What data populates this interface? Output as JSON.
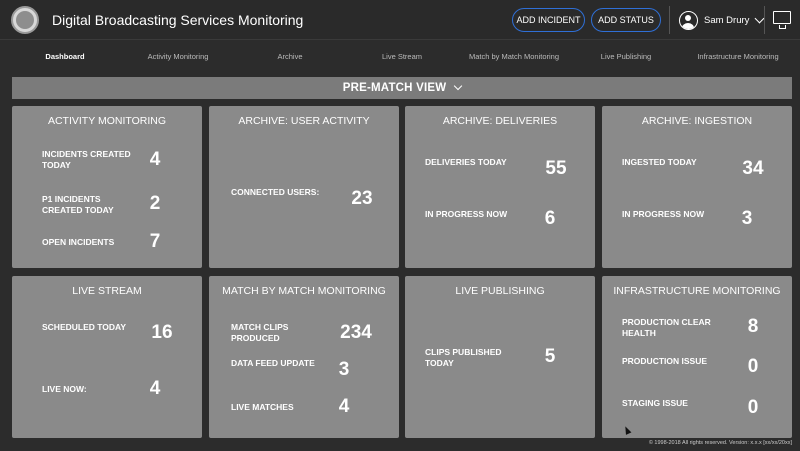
{
  "header": {
    "title": "Digital Broadcasting Services Monitoring",
    "add_incident_label": "ADD INCIDENT",
    "add_status_label": "ADD STATUS",
    "user_name": "Sam Drury",
    "accent_color": "#2f6fd6",
    "logo_icon": "uefa-logo",
    "monitor_icon": "monitor-icon"
  },
  "nav": {
    "items": [
      {
        "label": "Dashboard",
        "active": true
      },
      {
        "label": "Activity Monitoring"
      },
      {
        "label": "Archive"
      },
      {
        "label": "Live Stream"
      },
      {
        "label": "Match by Match Monitoring"
      },
      {
        "label": "Live Publishing"
      },
      {
        "label": "Infrastructure Monitoring"
      }
    ]
  },
  "view": {
    "label": "PRE-MATCH VIEW"
  },
  "cards": [
    {
      "title": "ACTIVITY MONITORING",
      "metrics": [
        {
          "label": "INCIDENTS CREATED TODAY",
          "value": "4"
        },
        {
          "label": "P1 INCIDENTS CREATED TODAY",
          "value": "2"
        },
        {
          "label": "OPEN INCIDENTS",
          "value": "7"
        }
      ]
    },
    {
      "title": "ARCHIVE: USER ACTIVITY",
      "metrics": [
        {
          "label": "CONNECTED USERS:",
          "value": "23"
        }
      ]
    },
    {
      "title": "ARCHIVE: DELIVERIES",
      "metrics": [
        {
          "label": "DELIVERIES TODAY",
          "value": "55"
        },
        {
          "label": "IN PROGRESS NOW",
          "value": "6"
        }
      ]
    },
    {
      "title": "ARCHIVE: INGESTION",
      "metrics": [
        {
          "label": "INGESTED TODAY",
          "value": "34"
        },
        {
          "label": "IN PROGRESS NOW",
          "value": "3"
        }
      ]
    },
    {
      "title": "LIVE STREAM",
      "metrics": [
        {
          "label": "SCHEDULED TODAY",
          "value": "16"
        },
        {
          "label": "LIVE NOW:",
          "value": "4"
        }
      ]
    },
    {
      "title": "MATCH BY MATCH MONITORING",
      "metrics": [
        {
          "label": "MATCH CLIPS PRODUCED",
          "value": "234"
        },
        {
          "label": "DATA FEED UPDATE",
          "value": "3"
        },
        {
          "label": "LIVE MATCHES",
          "value": "4"
        }
      ]
    },
    {
      "title": "LIVE PUBLISHING",
      "metrics": [
        {
          "label": "CLIPS PUBLISHED TODAY",
          "value": "5"
        }
      ]
    },
    {
      "title": "INFRASTRUCTURE MONITORING",
      "metrics": [
        {
          "label": "PRODUCTION CLEAR HEALTH",
          "value": "8"
        },
        {
          "label": "PRODUCTION ISSUE",
          "value": "0"
        },
        {
          "label": "STAGING ISSUE",
          "value": "0"
        }
      ]
    }
  ],
  "footer": {
    "text": "© 1998-2018 All rights reserved. Version: x.x.x [xx/xx/20xx]"
  }
}
